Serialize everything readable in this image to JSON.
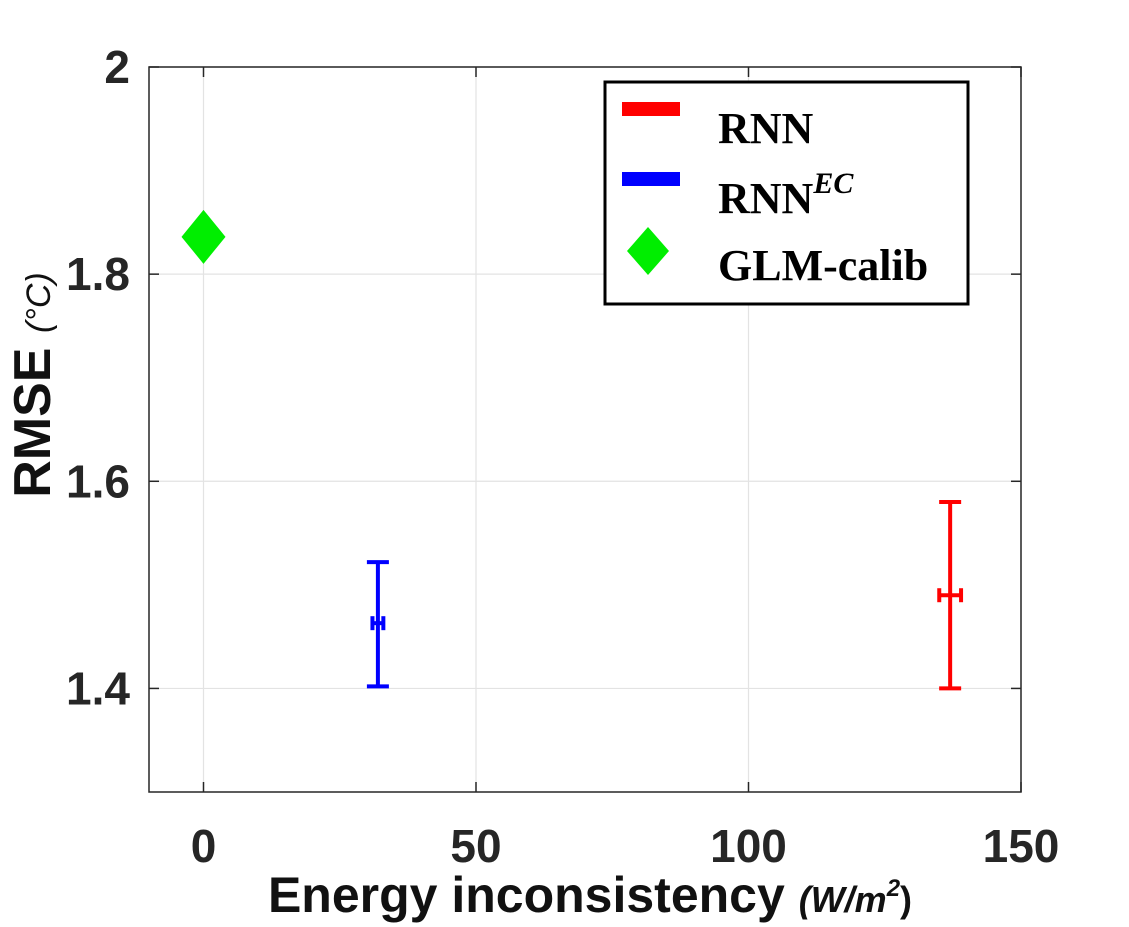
{
  "chart_data": {
    "type": "scatter",
    "xlabel": "Energy inconsistency",
    "xlabel_unit": "(W/m",
    "xlabel_unit_exp": "2",
    "xlabel_unit_close": ")",
    "ylabel": "RMSE",
    "ylabel_unit": "(°C)",
    "xlim": [
      -10,
      150
    ],
    "ylim": [
      1.3,
      2.0
    ],
    "x_ticks": [
      0,
      50,
      100,
      150
    ],
    "x_tick_labels": [
      "0",
      "50",
      "100",
      "150"
    ],
    "y_ticks": [
      1.4,
      1.6,
      1.8,
      2.0
    ],
    "y_tick_labels": [
      "1.4",
      "1.6",
      "1.8",
      "2"
    ],
    "grid": true,
    "legend_position": "top-right",
    "series": [
      {
        "name": "RNN",
        "color": "#ff0000",
        "marker": "errorbar",
        "points": [
          {
            "x": 137,
            "y": 1.49,
            "y_low": 1.4,
            "y_high": 1.58,
            "x_low": 135,
            "x_high": 139
          }
        ]
      },
      {
        "name": "RNN",
        "name_superscript": "EC",
        "color": "#0000ff",
        "marker": "errorbar",
        "points": [
          {
            "x": 32,
            "y": 1.463,
            "y_low": 1.402,
            "y_high": 1.522,
            "x_low": 31,
            "x_high": 33
          }
        ]
      },
      {
        "name": "GLM-calib",
        "color": "#00ee00",
        "marker": "diamond",
        "points": [
          {
            "x": 0,
            "y": 1.836
          }
        ]
      }
    ]
  }
}
